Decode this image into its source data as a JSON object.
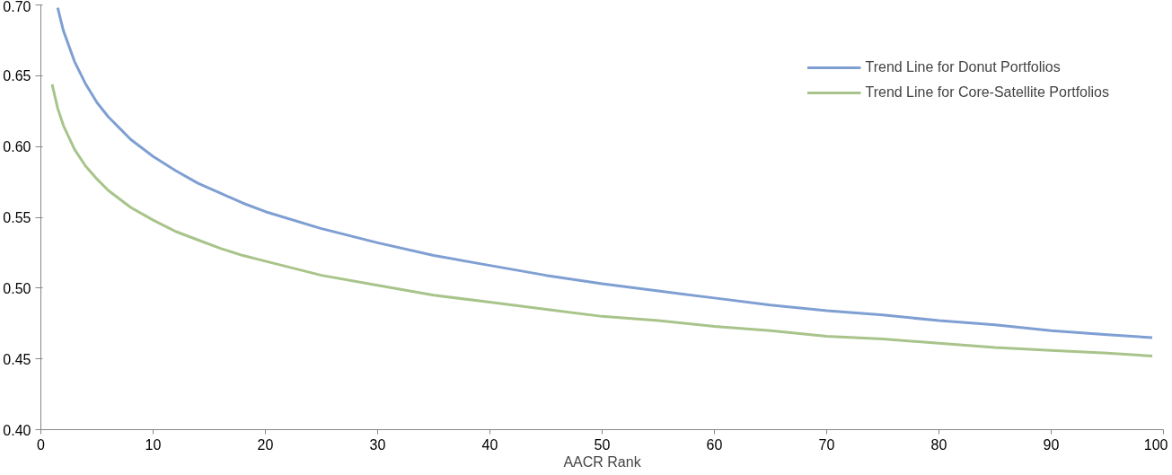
{
  "chart_data": {
    "type": "line",
    "xlabel": "AACR Rank",
    "xlim": [
      0,
      100
    ],
    "xticks": [
      0,
      10,
      20,
      30,
      40,
      50,
      60,
      70,
      80,
      90,
      100
    ],
    "ylim": [
      0.4,
      0.7
    ],
    "yticks": [
      {
        "value": 0.4,
        "label": "0.40"
      },
      {
        "value": 0.45,
        "label": "0.45"
      },
      {
        "value": 0.5,
        "label": "0.50"
      },
      {
        "value": 0.55,
        "label": "0.55"
      },
      {
        "value": 0.6,
        "label": "0.60"
      },
      {
        "value": 0.65,
        "label": "0.65"
      },
      {
        "value": 0.7,
        "label": "0.70"
      }
    ],
    "grid": false,
    "legend": "top right",
    "marker": "none",
    "line_style": "solid",
    "series": [
      {
        "name": "Trend Line for Donut Portfolios",
        "color": "#7f9fd3",
        "x": [
          1.5,
          2,
          3,
          4,
          5,
          6,
          7,
          8,
          10,
          12,
          14,
          16,
          18,
          20,
          25,
          30,
          35,
          40,
          45,
          50,
          55,
          60,
          65,
          70,
          75,
          80,
          85,
          90,
          95,
          99
        ],
        "values": [
          0.698,
          0.682,
          0.66,
          0.644,
          0.631,
          0.621,
          0.613,
          0.605,
          0.593,
          0.583,
          0.574,
          0.567,
          0.56,
          0.554,
          0.542,
          0.532,
          0.523,
          0.516,
          0.509,
          0.503,
          0.498,
          0.493,
          0.488,
          0.484,
          0.481,
          0.477,
          0.474,
          0.47,
          0.467,
          0.465
        ]
      },
      {
        "name": "Trend Line for Core-Satellite Portfolios",
        "color": "#a8c48a",
        "x": [
          1,
          1.5,
          2,
          3,
          4,
          5,
          6,
          7,
          8,
          10,
          12,
          14,
          16,
          18,
          20,
          25,
          30,
          35,
          40,
          45,
          50,
          55,
          60,
          65,
          70,
          75,
          80,
          85,
          90,
          95,
          99
        ],
        "values": [
          0.644,
          0.627,
          0.615,
          0.598,
          0.586,
          0.577,
          0.569,
          0.563,
          0.557,
          0.548,
          0.54,
          0.534,
          0.528,
          0.523,
          0.519,
          0.509,
          0.502,
          0.495,
          0.49,
          0.485,
          0.48,
          0.477,
          0.473,
          0.47,
          0.466,
          0.464,
          0.461,
          0.458,
          0.456,
          0.454,
          0.452
        ]
      }
    ]
  }
}
